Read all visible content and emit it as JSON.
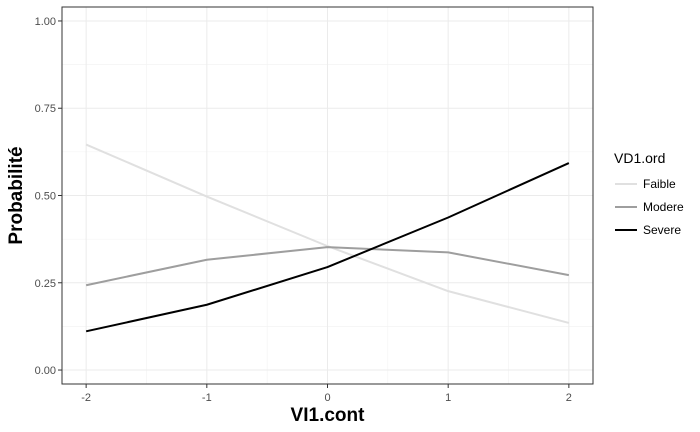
{
  "chart_data": {
    "type": "line",
    "xlabel": "VI1.cont",
    "ylabel": "Probabilité",
    "x": [
      -2,
      -1,
      0,
      1,
      2
    ],
    "x_tick_labels": [
      "-2",
      "-1",
      "0",
      "1",
      "2"
    ],
    "y_tick_labels": [
      "0.00",
      "0.25",
      "0.50",
      "0.75",
      "1.00"
    ],
    "y_ticks": [
      0,
      0.25,
      0.5,
      0.75,
      1.0
    ],
    "xlim": [
      -2.2,
      2.2
    ],
    "ylim": [
      -0.04,
      1.04
    ],
    "grid": true,
    "legend": {
      "title": "VD1.ord",
      "position": "right"
    },
    "series": [
      {
        "name": "Faible",
        "color": "#e0e0e0",
        "values": [
          0.646,
          0.497,
          0.355,
          0.226,
          0.135
        ]
      },
      {
        "name": "Modere",
        "color": "#9e9e9e",
        "values": [
          0.243,
          0.316,
          0.352,
          0.337,
          0.272
        ]
      },
      {
        "name": "Severe",
        "color": "#000000",
        "values": [
          0.111,
          0.187,
          0.295,
          0.437,
          0.593
        ]
      }
    ]
  }
}
